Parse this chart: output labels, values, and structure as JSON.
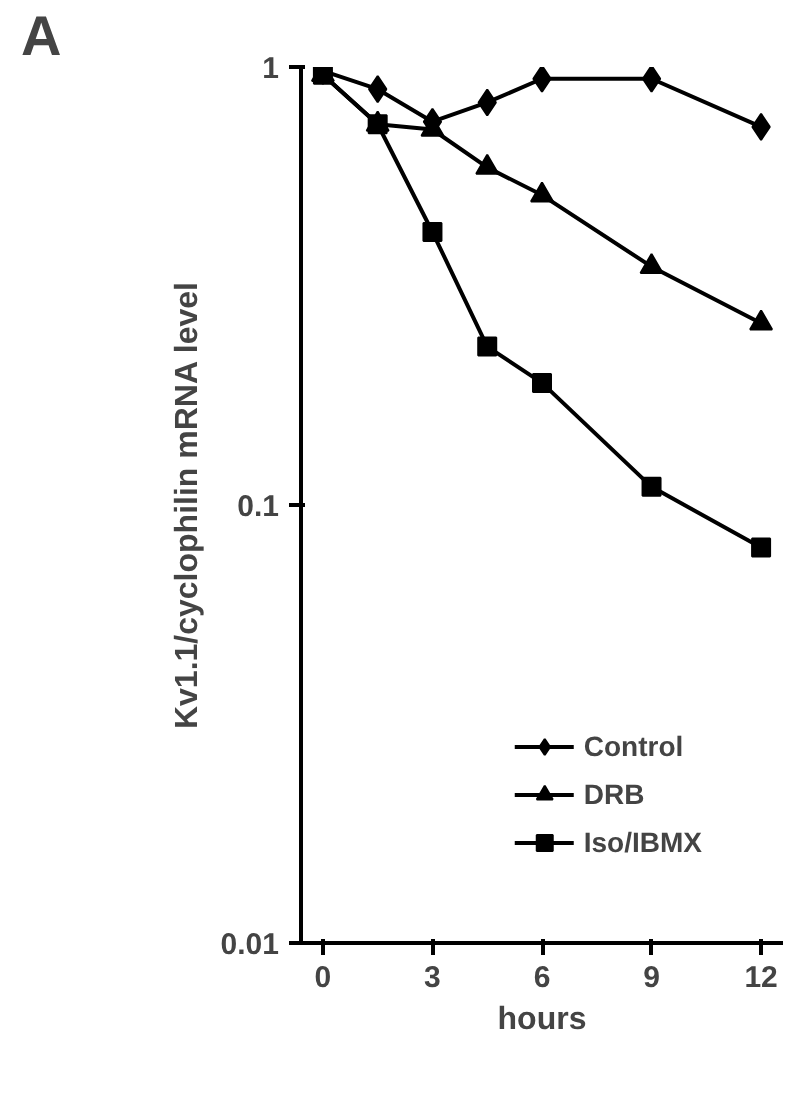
{
  "chart_data": {
    "type": "line",
    "xlabel": "hours",
    "ylabel": "Kv1.1/cyclophilin mRNA level",
    "annotations": [
      "A"
    ],
    "x": [
      0,
      1.5,
      3,
      4.5,
      6,
      9,
      12
    ],
    "series": [
      {
        "name": "Control",
        "color": "#000000",
        "marker": "diamond",
        "values": [
          0.98,
          0.89,
          0.75,
          0.83,
          0.94,
          0.94,
          0.73
        ]
      },
      {
        "name": "DRB",
        "color": "#000000",
        "marker": "triangle",
        "values": [
          0.96,
          0.74,
          0.72,
          0.59,
          0.51,
          0.35,
          0.26
        ]
      },
      {
        "name": "Iso/IBMX",
        "color": "#000000",
        "marker": "square",
        "values": [
          0.96,
          0.74,
          0.42,
          0.23,
          0.19,
          0.11,
          0.08
        ]
      }
    ],
    "log": "y",
    "xlim": [
      -0.6,
      12.6
    ],
    "ylim": [
      0.01,
      1
    ],
    "xticks": [
      0,
      3,
      6,
      9,
      12
    ],
    "yticks": [
      1,
      0.1,
      0.01
    ],
    "grid": false,
    "legend": "bottom right",
    "line_style": "solid"
  }
}
